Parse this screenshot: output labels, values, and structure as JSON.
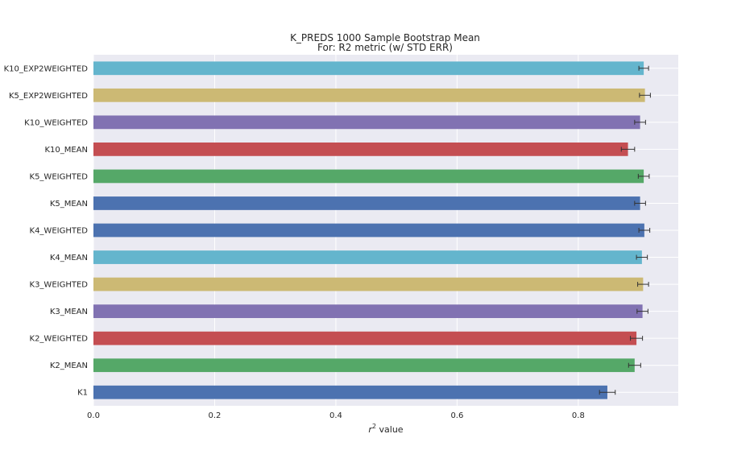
{
  "chart_data": {
    "type": "bar",
    "orientation": "horizontal",
    "title_line1": "K_PREDS 1000 Sample Bootstrap Mean",
    "title_line2": "For: R2 metric (w/ STD ERR)",
    "xlabel": "r",
    "xlabel_sup": "2",
    "xlabel_rest": " value",
    "xlim": [
      0,
      0.965
    ],
    "xticks": [
      "0.0",
      "0.2",
      "0.4",
      "0.6",
      "0.8"
    ],
    "grid": true,
    "categories": [
      "K10_EXP2WEIGHTED",
      "K5_EXP2WEIGHTED",
      "K10_WEIGHTED",
      "K10_MEAN",
      "K5_WEIGHTED",
      "K5_MEAN",
      "K4_WEIGHTED",
      "K4_MEAN",
      "K3_WEIGHTED",
      "K3_MEAN",
      "K2_WEIGHTED",
      "K2_MEAN",
      "K1"
    ],
    "values": [
      0.908,
      0.91,
      0.902,
      0.882,
      0.908,
      0.902,
      0.909,
      0.905,
      0.907,
      0.906,
      0.896,
      0.893,
      0.848
    ],
    "errors": [
      0.008,
      0.009,
      0.009,
      0.011,
      0.009,
      0.009,
      0.009,
      0.009,
      0.009,
      0.009,
      0.01,
      0.01,
      0.013
    ],
    "colors": [
      "#64b5cd",
      "#ccb974",
      "#8172b2",
      "#c44e52",
      "#55a868",
      "#4c72b0",
      "#4c72b0",
      "#64b5cd",
      "#ccb974",
      "#8172b2",
      "#c44e52",
      "#55a868",
      "#4c72b0"
    ],
    "plot_bg": "#eaeaf2",
    "grid_color": "#ffffff",
    "error_color": "#333333"
  }
}
